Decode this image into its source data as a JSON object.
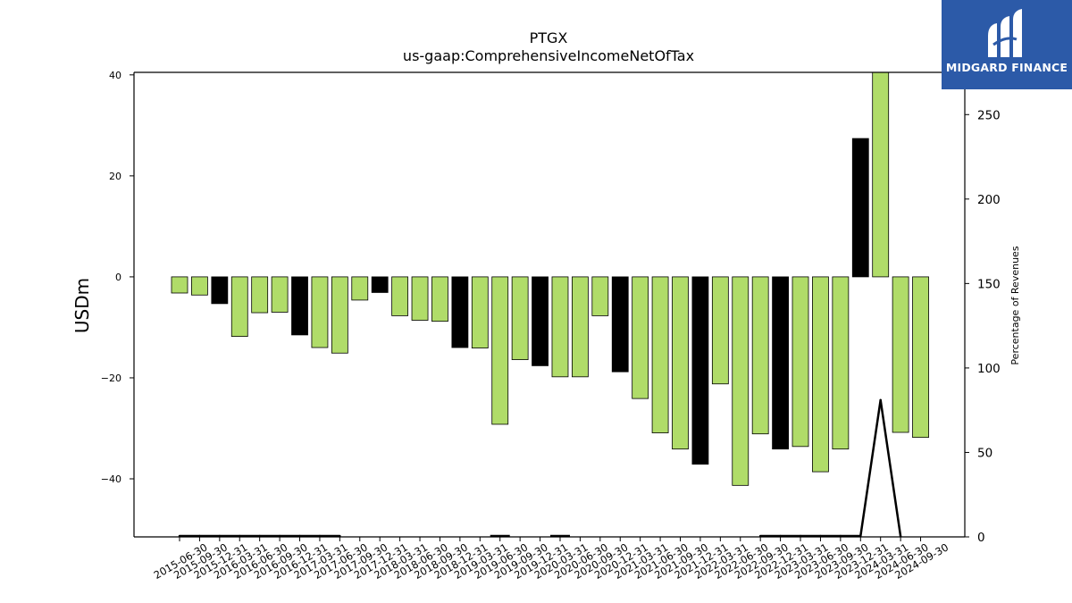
{
  "brand": {
    "name": "MIDGARD FINANCE",
    "box_color": "#2c5aa8",
    "text_color": "#ffffff"
  },
  "chart_data": {
    "type": "bar",
    "title": "PTGX",
    "subtitle": "us-gaap:ComprehensiveIncomeNetOfTax",
    "ylabel": "USDm",
    "y2label": "Percentage of Revenues",
    "ylim": [
      -51.5,
      40.5
    ],
    "y2lim": [
      0,
      275
    ],
    "yticks": [
      -40,
      -20,
      0,
      20,
      40
    ],
    "y2ticks": [
      0,
      50,
      100,
      150,
      200,
      250
    ],
    "grid": false,
    "colors": {
      "default": "#b0dc69",
      "highlight": "#000000",
      "edge": "#000000",
      "line": "#000000"
    },
    "categories": [
      "2015-06-30",
      "2015-09-30",
      "2015-12-31",
      "2016-03-31",
      "2016-06-30",
      "2016-09-30",
      "2016-12-31",
      "2017-03-31",
      "2017-06-30",
      "2017-09-30",
      "2017-12-31",
      "2018-03-31",
      "2018-06-30",
      "2018-09-30",
      "2018-12-31",
      "2019-03-31",
      "2019-06-30",
      "2019-09-30",
      "2019-12-31",
      "2020-03-31",
      "2020-06-30",
      "2020-09-30",
      "2020-12-31",
      "2021-03-31",
      "2021-06-30",
      "2021-09-30",
      "2021-12-31",
      "2022-03-31",
      "2022-06-30",
      "2022-09-30",
      "2022-12-31",
      "2023-03-31",
      "2023-06-30",
      "2023-09-30",
      "2023-12-31",
      "2024-03-31",
      "2024-06-30",
      "2024-09-30"
    ],
    "values": [
      -3.2,
      -3.6,
      -5.3,
      -11.8,
      -7.1,
      -7.0,
      -11.5,
      -14.0,
      -15.1,
      -4.6,
      -3.1,
      -7.7,
      -8.6,
      -8.8,
      -14.0,
      -14.1,
      -29.2,
      -16.4,
      -17.6,
      -19.8,
      -19.8,
      -7.7,
      -18.8,
      -24.1,
      -30.9,
      -34.1,
      -37.1,
      -21.2,
      -41.3,
      -31.1,
      -34.1,
      -33.6,
      -38.6,
      -34.1,
      27.4,
      40.5,
      -30.8,
      -31.8
    ],
    "highlight": [
      false,
      false,
      true,
      false,
      false,
      false,
      true,
      false,
      false,
      false,
      true,
      false,
      false,
      false,
      true,
      false,
      false,
      false,
      true,
      false,
      false,
      false,
      true,
      false,
      false,
      false,
      true,
      false,
      false,
      false,
      true,
      false,
      false,
      false,
      true,
      false,
      false,
      false
    ],
    "pct_of_revenue": [
      0.5,
      0.5,
      0.5,
      0.5,
      0.5,
      0.5,
      0.5,
      0.5,
      0.5,
      null,
      null,
      null,
      null,
      null,
      null,
      null,
      0.5,
      null,
      null,
      0.5,
      null,
      null,
      null,
      null,
      null,
      null,
      null,
      null,
      null,
      0.5,
      0.5,
      0.5,
      0.5,
      0.5,
      0.5,
      81,
      0.3,
      null
    ]
  }
}
